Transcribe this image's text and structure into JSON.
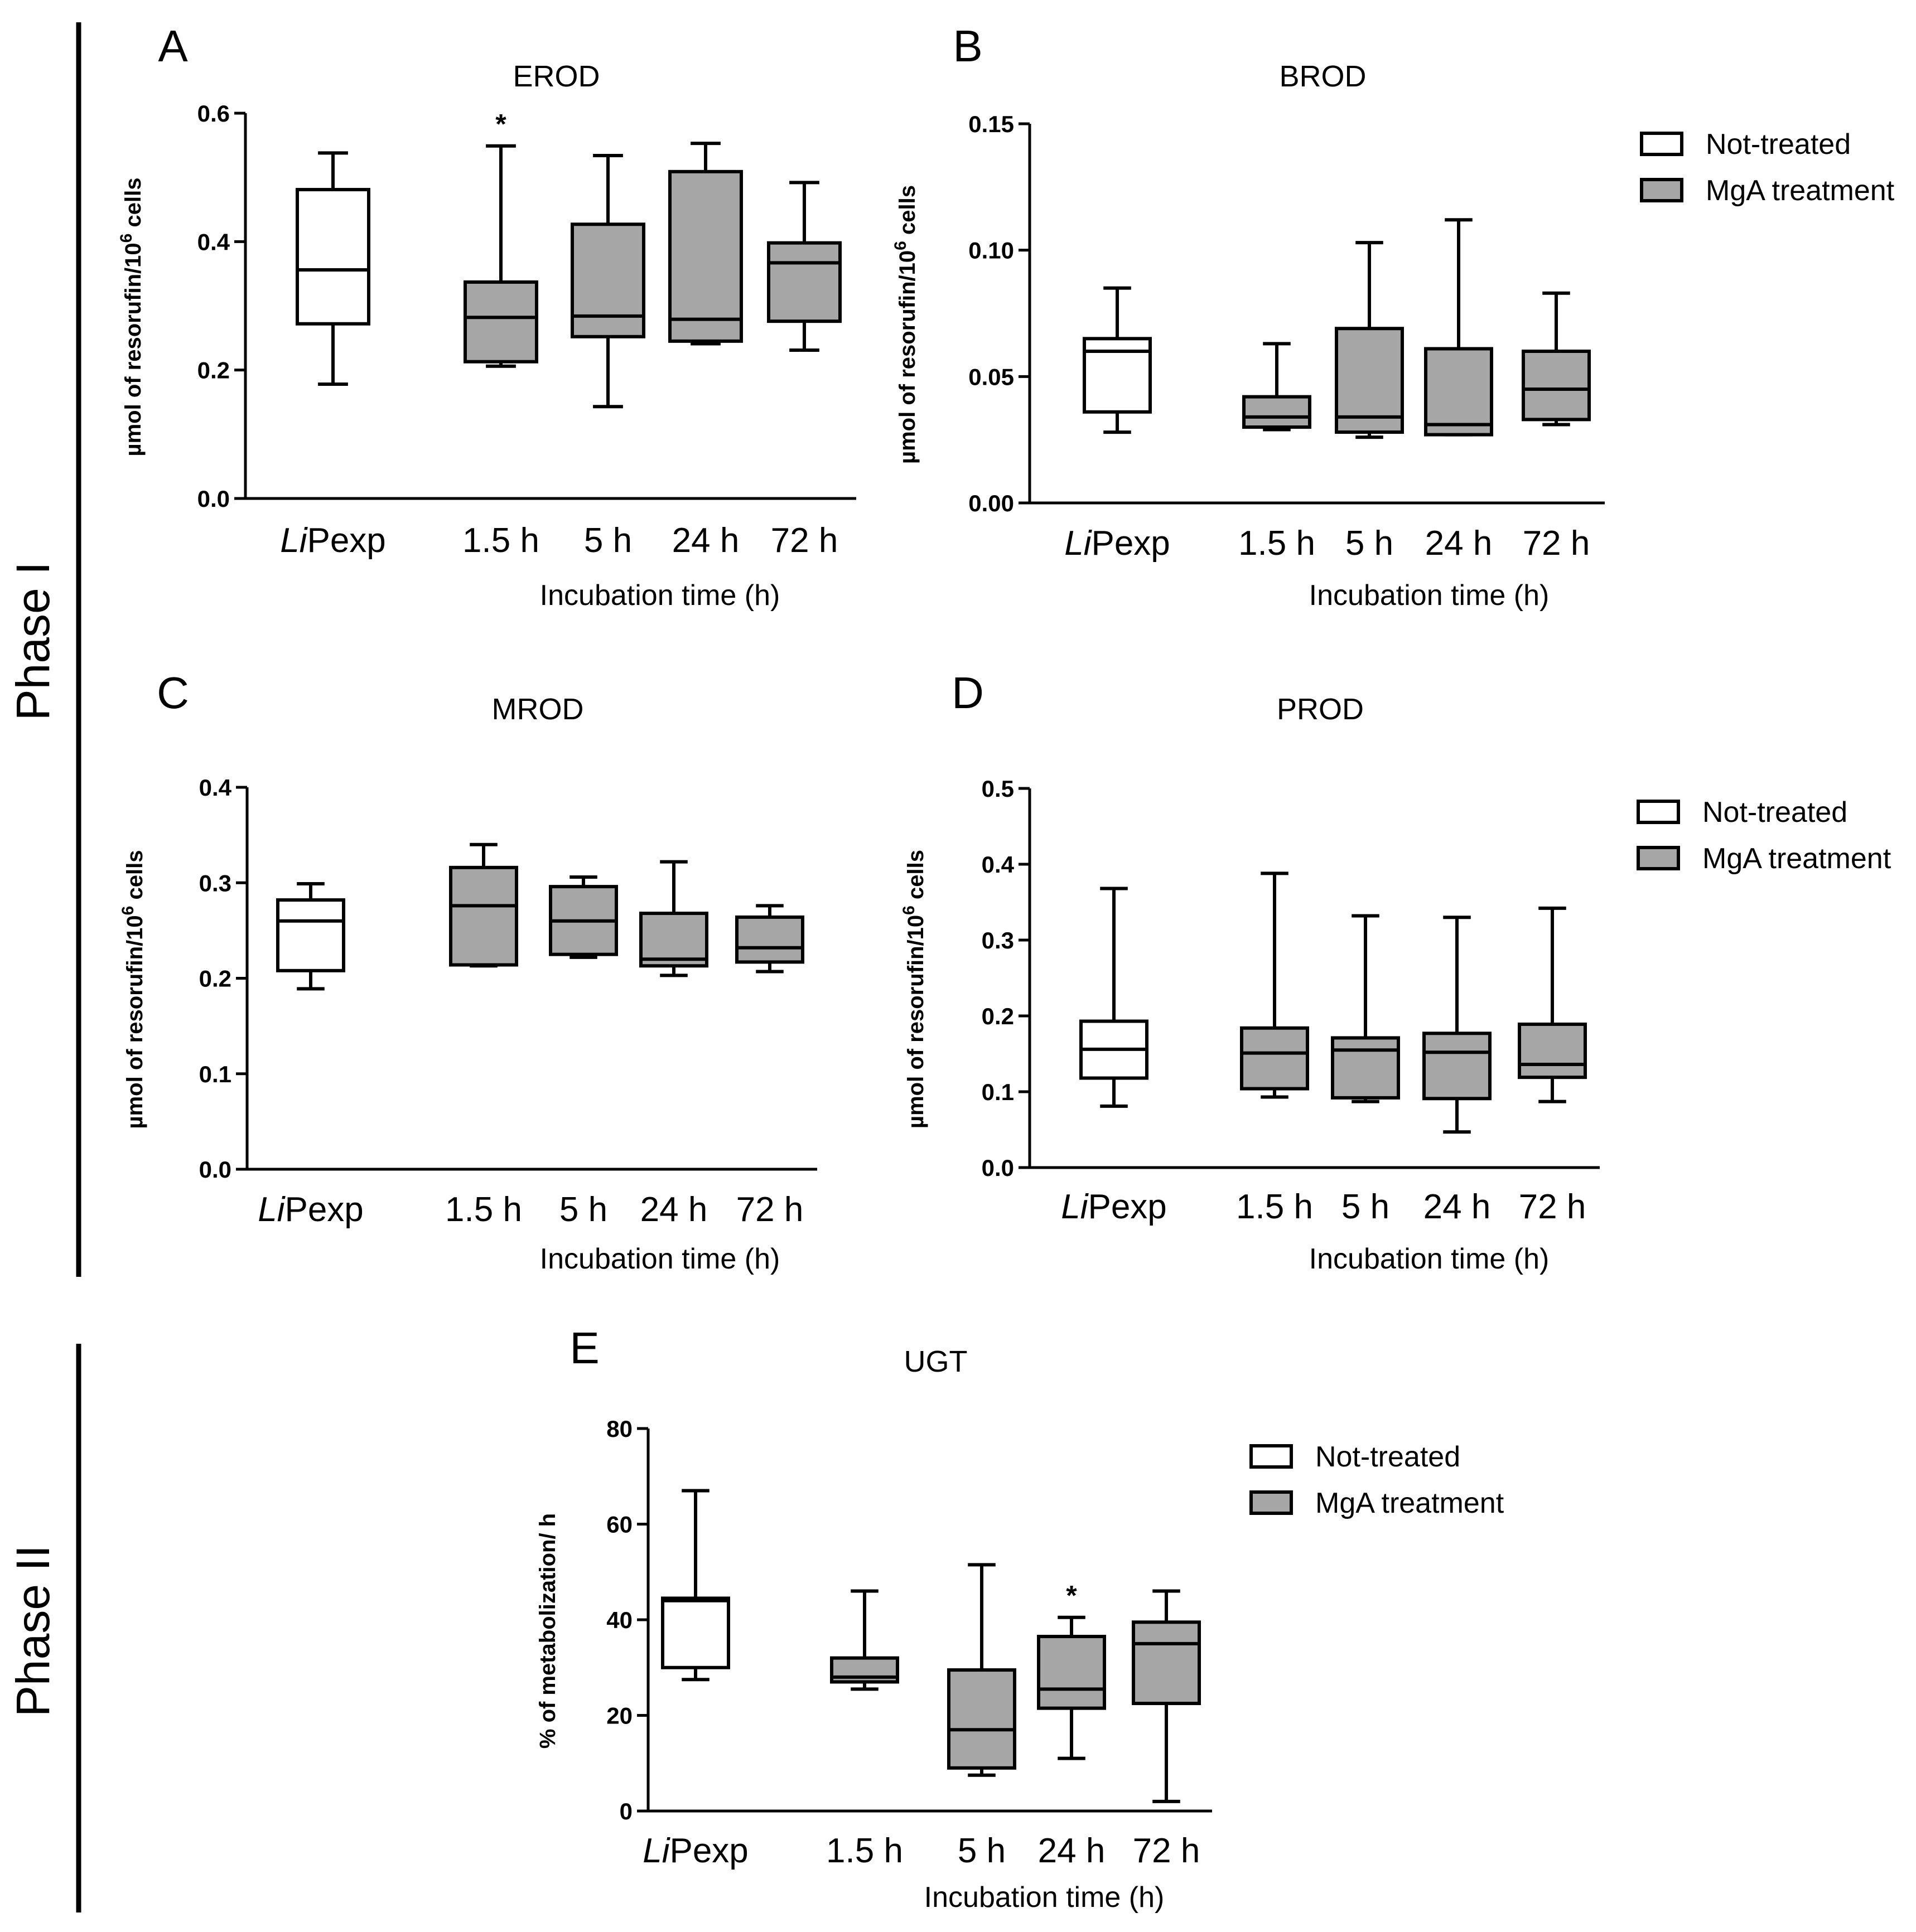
{
  "phase_labels": {
    "phase1": "Phase I",
    "phase2": "Phase II"
  },
  "legend": {
    "not_treated": {
      "label": "Not-treated",
      "color": "#ffffff"
    },
    "mga": {
      "label": "MgA treatment",
      "color": "#a6a6a6"
    }
  },
  "chart_data": [
    {
      "id": "A",
      "letter": "A",
      "type": "boxplot",
      "title": "EROD",
      "xlabel": "Incubation time (h)",
      "ylabel": {
        "prefix": "µmol of resorufin/10",
        "sup": "6",
        "suffix": " cells"
      },
      "ylim": [
        0,
        0.6
      ],
      "yticks": [
        "0.0",
        "0.2",
        "0.4",
        "0.6"
      ],
      "categories": [
        {
          "label": "LiPexp",
          "italic": "Li",
          "rest": "Pexp"
        },
        {
          "label": "1.5 h"
        },
        {
          "label": "5 h"
        },
        {
          "label": "24 h"
        },
        {
          "label": "72 h"
        }
      ],
      "boxes": [
        {
          "group": "Not-treated",
          "min": 0.178,
          "q1": 0.272,
          "median": 0.356,
          "q3": 0.481,
          "max": 0.538
        },
        {
          "group": "MgA treatment",
          "min": 0.206,
          "q1": 0.213,
          "median": 0.282,
          "q3": 0.337,
          "max": 0.549
        },
        {
          "group": "MgA treatment",
          "min": 0.143,
          "q1": 0.252,
          "median": 0.284,
          "q3": 0.427,
          "max": 0.534
        },
        {
          "group": "MgA treatment",
          "min": 0.241,
          "q1": 0.245,
          "median": 0.279,
          "q3": 0.509,
          "max": 0.553
        },
        {
          "group": "MgA treatment",
          "min": 0.231,
          "q1": 0.276,
          "median": 0.367,
          "q3": 0.398,
          "max": 0.492
        }
      ],
      "annotations": [
        {
          "category": 1,
          "text": "*"
        }
      ],
      "legend": false
    },
    {
      "id": "B",
      "letter": "B",
      "type": "boxplot",
      "title": "BROD",
      "xlabel": "Incubation time (h)",
      "ylabel": {
        "prefix": "µmol of resorufin/10",
        "sup": "6",
        "suffix": " cells"
      },
      "ylim": [
        0,
        0.15
      ],
      "yticks": [
        "0.00",
        "0.05",
        "0.10",
        "0.15"
      ],
      "categories": [
        {
          "label": "LiPexp",
          "italic": "Li",
          "rest": "Pexp"
        },
        {
          "label": "1.5 h"
        },
        {
          "label": "5 h"
        },
        {
          "label": "24 h"
        },
        {
          "label": "72 h"
        }
      ],
      "boxes": [
        {
          "group": "Not-treated",
          "min": 0.028,
          "q1": 0.036,
          "median": 0.06,
          "q3": 0.065,
          "max": 0.085
        },
        {
          "group": "MgA treatment",
          "min": 0.029,
          "q1": 0.03,
          "median": 0.034,
          "q3": 0.042,
          "max": 0.063
        },
        {
          "group": "MgA treatment",
          "min": 0.026,
          "q1": 0.028,
          "median": 0.034,
          "q3": 0.069,
          "max": 0.103
        },
        {
          "group": "MgA treatment",
          "min": 0.027,
          "q1": 0.027,
          "median": 0.031,
          "q3": 0.061,
          "max": 0.112
        },
        {
          "group": "MgA treatment",
          "min": 0.031,
          "q1": 0.033,
          "median": 0.045,
          "q3": 0.06,
          "max": 0.083
        }
      ],
      "annotations": [],
      "legend": true
    },
    {
      "id": "C",
      "letter": "C",
      "type": "boxplot",
      "title": "MROD",
      "xlabel": "Incubation time (h)",
      "ylabel": {
        "prefix": "µmol of resorufin/10",
        "sup": "6",
        "suffix": " cells"
      },
      "ylim": [
        0,
        0.4
      ],
      "yticks": [
        "0.0",
        "0.1",
        "0.2",
        "0.3",
        "0.4"
      ],
      "categories": [
        {
          "label": "LiPexp",
          "italic": "Li",
          "rest": "Pexp"
        },
        {
          "label": "1.5 h"
        },
        {
          "label": "5 h"
        },
        {
          "label": "24 h"
        },
        {
          "label": "72 h"
        }
      ],
      "boxes": [
        {
          "group": "Not-treated",
          "min": 0.189,
          "q1": 0.208,
          "median": 0.26,
          "q3": 0.282,
          "max": 0.299
        },
        {
          "group": "MgA treatment",
          "min": 0.213,
          "q1": 0.214,
          "median": 0.276,
          "q3": 0.316,
          "max": 0.34
        },
        {
          "group": "MgA treatment",
          "min": 0.222,
          "q1": 0.225,
          "median": 0.26,
          "q3": 0.296,
          "max": 0.306
        },
        {
          "group": "MgA treatment",
          "min": 0.203,
          "q1": 0.213,
          "median": 0.22,
          "q3": 0.268,
          "max": 0.322
        },
        {
          "group": "MgA treatment",
          "min": 0.207,
          "q1": 0.217,
          "median": 0.232,
          "q3": 0.264,
          "max": 0.276
        }
      ],
      "annotations": [],
      "legend": false
    },
    {
      "id": "D",
      "letter": "D",
      "type": "boxplot",
      "title": "PROD",
      "xlabel": "Incubation time (h)",
      "ylabel": {
        "prefix": "µmol of resorufin/10",
        "sup": "6",
        "suffix": " cells"
      },
      "ylim": [
        0,
        0.5
      ],
      "yticks": [
        "0.0",
        "0.1",
        "0.2",
        "0.3",
        "0.4",
        "0.5"
      ],
      "categories": [
        {
          "label": "LiPexp",
          "italic": "Li",
          "rest": "Pexp"
        },
        {
          "label": "1.5 h"
        },
        {
          "label": "5 h"
        },
        {
          "label": "24 h"
        },
        {
          "label": "72 h"
        }
      ],
      "boxes": [
        {
          "group": "Not-treated",
          "min": 0.081,
          "q1": 0.118,
          "median": 0.156,
          "q3": 0.193,
          "max": 0.368
        },
        {
          "group": "MgA treatment",
          "min": 0.093,
          "q1": 0.104,
          "median": 0.151,
          "q3": 0.184,
          "max": 0.388
        },
        {
          "group": "MgA treatment",
          "min": 0.087,
          "q1": 0.092,
          "median": 0.155,
          "q3": 0.171,
          "max": 0.332
        },
        {
          "group": "MgA treatment",
          "min": 0.047,
          "q1": 0.091,
          "median": 0.152,
          "q3": 0.177,
          "max": 0.33
        },
        {
          "group": "MgA treatment",
          "min": 0.087,
          "q1": 0.119,
          "median": 0.136,
          "q3": 0.189,
          "max": 0.342
        }
      ],
      "annotations": [],
      "legend": true
    },
    {
      "id": "E",
      "letter": "E",
      "type": "boxplot",
      "title": "UGT",
      "xlabel": "Incubation time (h)",
      "ylabel": {
        "prefix": "% of metabolization/ h",
        "sup": "",
        "suffix": ""
      },
      "ylim": [
        0,
        80
      ],
      "yticks": [
        "0",
        "20",
        "40",
        "60",
        "80"
      ],
      "categories": [
        {
          "label": "LiPexp",
          "italic": "Li",
          "rest": "Pexp"
        },
        {
          "label": "1.5 h"
        },
        {
          "label": "5 h"
        },
        {
          "label": "24 h"
        },
        {
          "label": "72 h"
        }
      ],
      "boxes": [
        {
          "group": "Not-treated",
          "min": 27.5,
          "q1": 30,
          "median": 44,
          "q3": 44.5,
          "max": 67
        },
        {
          "group": "MgA treatment",
          "min": 25.5,
          "q1": 27,
          "median": 28,
          "q3": 32,
          "max": 46
        },
        {
          "group": "MgA treatment",
          "min": 7.5,
          "q1": 9,
          "median": 17,
          "q3": 29.5,
          "max": 51.5
        },
        {
          "group": "MgA treatment",
          "min": 11,
          "q1": 21.5,
          "median": 25.5,
          "q3": 36.5,
          "max": 40.5
        },
        {
          "group": "MgA treatment",
          "min": 2,
          "q1": 22.5,
          "median": 35,
          "q3": 39.5,
          "max": 46
        }
      ],
      "annotations": [
        {
          "category": 3,
          "text": "*"
        }
      ],
      "legend": true
    }
  ]
}
